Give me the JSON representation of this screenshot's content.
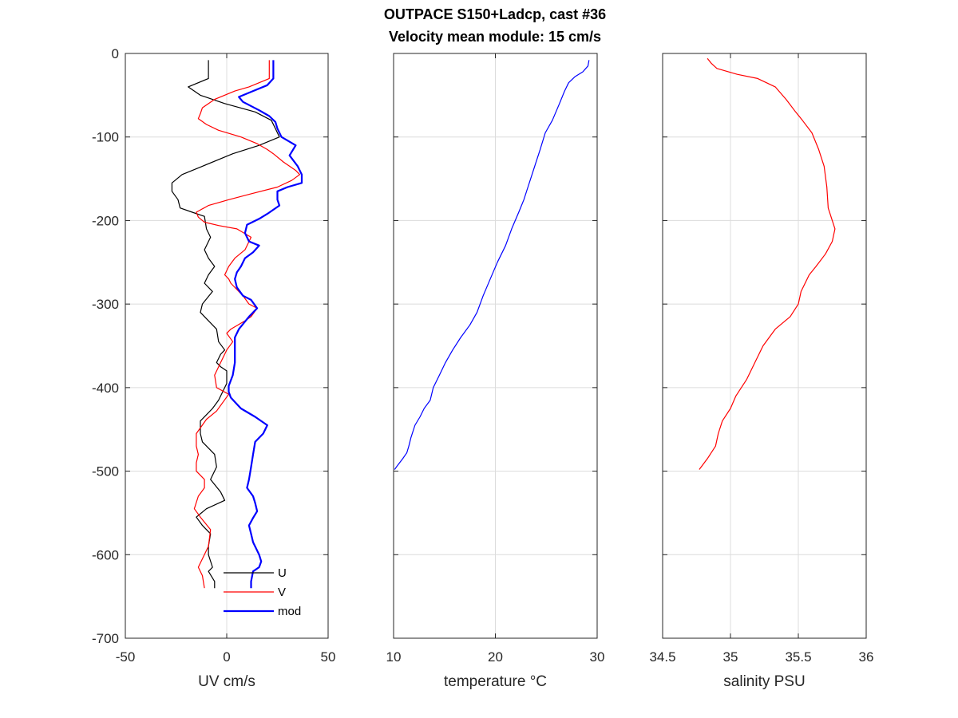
{
  "chart_data": [
    {
      "type": "line",
      "title": "OUTPACE S150+Ladcp, cast #36",
      "subtitle": "Velocity mean module:  15 cm/s",
      "xlabel": "UV cm/s",
      "ylabel": "",
      "xlim": [
        -50,
        50
      ],
      "ylim": [
        -700,
        0
      ],
      "xticks": [
        -50,
        0,
        50
      ],
      "yticks": [
        0,
        -100,
        -200,
        -300,
        -400,
        -500,
        -600,
        -700
      ],
      "grid": true,
      "legend": {
        "placement": "bottom-right",
        "entries": [
          "U",
          "V",
          "mod"
        ]
      },
      "series": [
        {
          "name": "U",
          "color": "#000000",
          "line_width": 1.2,
          "points": [
            [
              -9,
              -8
            ],
            [
              -9,
              -30
            ],
            [
              -19,
              -40
            ],
            [
              -13,
              -50
            ],
            [
              -1,
              -60
            ],
            [
              14,
              -70
            ],
            [
              22,
              -80
            ],
            [
              24,
              -90
            ],
            [
              26,
              -100
            ],
            [
              16,
              -110
            ],
            [
              3,
              -120
            ],
            [
              -12,
              -135
            ],
            [
              -22,
              -145
            ],
            [
              -27,
              -155
            ],
            [
              -27,
              -165
            ],
            [
              -24,
              -175
            ],
            [
              -23,
              -185
            ],
            [
              -17,
              -190
            ],
            [
              -11,
              -195
            ],
            [
              -10,
              -210
            ],
            [
              -8,
              -220
            ],
            [
              -11,
              -235
            ],
            [
              -9,
              -245
            ],
            [
              -6,
              -255
            ],
            [
              -9,
              -265
            ],
            [
              -11,
              -275
            ],
            [
              -7,
              -285
            ],
            [
              -12,
              -300
            ],
            [
              -13,
              -310
            ],
            [
              -9,
              -320
            ],
            [
              -5,
              -330
            ],
            [
              -4,
              -345
            ],
            [
              -1,
              -355
            ],
            [
              -3,
              -360
            ],
            [
              -5,
              -370
            ],
            [
              -3,
              -375
            ],
            [
              0,
              -380
            ],
            [
              0,
              -395
            ],
            [
              -2,
              -405
            ],
            [
              -4,
              -415
            ],
            [
              -7,
              -425
            ],
            [
              -13,
              -440
            ],
            [
              -13,
              -455
            ],
            [
              -12,
              -465
            ],
            [
              -6,
              -480
            ],
            [
              -5,
              -495
            ],
            [
              -8,
              -510
            ],
            [
              -3,
              -525
            ],
            [
              -1,
              -535
            ],
            [
              -10,
              -545
            ],
            [
              -15,
              -555
            ],
            [
              -12,
              -565
            ],
            [
              -8,
              -575
            ],
            [
              -9,
              -590
            ],
            [
              -9,
              -600
            ],
            [
              -7,
              -615
            ],
            [
              -9,
              -620
            ],
            [
              -6,
              -632
            ],
            [
              -6,
              -640
            ]
          ]
        },
        {
          "name": "V",
          "color": "#ff0000",
          "line_width": 1.2,
          "points": [
            [
              21,
              -8
            ],
            [
              21,
              -30
            ],
            [
              16,
              -35
            ],
            [
              11,
              -40
            ],
            [
              4,
              -45
            ],
            [
              -6,
              -55
            ],
            [
              -12,
              -65
            ],
            [
              -13,
              -72
            ],
            [
              -14,
              -78
            ],
            [
              -10,
              -85
            ],
            [
              -4,
              -92
            ],
            [
              7,
              -100
            ],
            [
              15,
              -108
            ],
            [
              20,
              -115
            ],
            [
              23,
              -120
            ],
            [
              28,
              -130
            ],
            [
              34,
              -140
            ],
            [
              36,
              -145
            ],
            [
              32,
              -152
            ],
            [
              25,
              -160
            ],
            [
              12,
              -168
            ],
            [
              1,
              -175
            ],
            [
              -9,
              -182
            ],
            [
              -15,
              -190
            ],
            [
              -14,
              -196
            ],
            [
              -11,
              -202
            ],
            [
              -4,
              -206
            ],
            [
              5,
              -210
            ],
            [
              12,
              -220
            ],
            [
              9,
              -235
            ],
            [
              4,
              -245
            ],
            [
              1,
              -255
            ],
            [
              -1,
              -265
            ],
            [
              1,
              -270
            ],
            [
              2,
              -275
            ],
            [
              8,
              -290
            ],
            [
              11,
              -300
            ],
            [
              15,
              -305
            ],
            [
              12,
              -315
            ],
            [
              9,
              -320
            ],
            [
              2,
              -330
            ],
            [
              0,
              -335
            ],
            [
              3,
              -345
            ],
            [
              0,
              -355
            ],
            [
              -3,
              -370
            ],
            [
              -6,
              -385
            ],
            [
              -5,
              -400
            ],
            [
              1,
              -408
            ],
            [
              -2,
              -418
            ],
            [
              -5,
              -428
            ],
            [
              -10,
              -438
            ],
            [
              -15,
              -455
            ],
            [
              -15,
              -470
            ],
            [
              -14,
              -480
            ],
            [
              -15,
              -490
            ],
            [
              -15,
              -500
            ],
            [
              -11,
              -510
            ],
            [
              -11,
              -520
            ],
            [
              -14,
              -530
            ],
            [
              -16,
              -545
            ],
            [
              -13,
              -555
            ],
            [
              -8,
              -570
            ],
            [
              -9,
              -590
            ],
            [
              -12,
              -605
            ],
            [
              -14,
              -615
            ],
            [
              -12,
              -625
            ],
            [
              -11,
              -640
            ]
          ]
        },
        {
          "name": "mod",
          "color": "#0000ff",
          "line_width": 2.2,
          "points": [
            [
              23,
              -8
            ],
            [
              23,
              -30
            ],
            [
              20,
              -38
            ],
            [
              13,
              -45
            ],
            [
              6,
              -52
            ],
            [
              8,
              -58
            ],
            [
              16,
              -68
            ],
            [
              21,
              -75
            ],
            [
              24,
              -82
            ],
            [
              25,
              -90
            ],
            [
              27,
              -100
            ],
            [
              34,
              -110
            ],
            [
              31,
              -122
            ],
            [
              35,
              -135
            ],
            [
              37,
              -145
            ],
            [
              37,
              -155
            ],
            [
              30,
              -160
            ],
            [
              25,
              -165
            ],
            [
              25,
              -175
            ],
            [
              26,
              -182
            ],
            [
              20,
              -192
            ],
            [
              16,
              -198
            ],
            [
              10,
              -205
            ],
            [
              9,
              -215
            ],
            [
              11,
              -225
            ],
            [
              16,
              -230
            ],
            [
              13,
              -238
            ],
            [
              9,
              -245
            ],
            [
              7,
              -255
            ],
            [
              5,
              -262
            ],
            [
              4,
              -270
            ],
            [
              5,
              -280
            ],
            [
              8,
              -290
            ],
            [
              12,
              -295
            ],
            [
              15,
              -305
            ],
            [
              11,
              -315
            ],
            [
              6,
              -330
            ],
            [
              4,
              -340
            ],
            [
              4,
              -355
            ],
            [
              4,
              -370
            ],
            [
              3,
              -385
            ],
            [
              1,
              -398
            ],
            [
              1,
              -405
            ],
            [
              2,
              -412
            ],
            [
              7,
              -425
            ],
            [
              14,
              -435
            ],
            [
              20,
              -445
            ],
            [
              18,
              -455
            ],
            [
              14,
              -465
            ],
            [
              13,
              -480
            ],
            [
              12,
              -495
            ],
            [
              11,
              -510
            ],
            [
              10,
              -520
            ],
            [
              13,
              -530
            ],
            [
              14,
              -538
            ],
            [
              15,
              -548
            ],
            [
              13,
              -556
            ],
            [
              11,
              -565
            ],
            [
              12,
              -575
            ],
            [
              13,
              -585
            ],
            [
              16,
              -600
            ],
            [
              17,
              -608
            ],
            [
              16,
              -615
            ],
            [
              13,
              -620
            ],
            [
              12,
              -632
            ],
            [
              12,
              -640
            ]
          ]
        }
      ]
    },
    {
      "type": "line",
      "title": "",
      "xlabel": "temperature °C",
      "ylabel": "",
      "xlim": [
        10,
        30
      ],
      "ylim": [
        -700,
        0
      ],
      "xticks": [
        10,
        20,
        30
      ],
      "yticks": [
        0,
        -100,
        -200,
        -300,
        -400,
        -500,
        -600,
        -700
      ],
      "grid": true,
      "series": [
        {
          "name": "",
          "color": "#0000ff",
          "line_width": 1.2,
          "points": [
            [
              29.2,
              -8
            ],
            [
              29.1,
              -15
            ],
            [
              28.6,
              -22
            ],
            [
              27.8,
              -28
            ],
            [
              27.2,
              -35
            ],
            [
              26.8,
              -45
            ],
            [
              26.3,
              -60
            ],
            [
              25.6,
              -80
            ],
            [
              24.9,
              -95
            ],
            [
              24.4,
              -115
            ],
            [
              24,
              -130
            ],
            [
              23.6,
              -145
            ],
            [
              23.2,
              -160
            ],
            [
              22.8,
              -175
            ],
            [
              22.3,
              -190
            ],
            [
              21.6,
              -210
            ],
            [
              21,
              -230
            ],
            [
              20.2,
              -250
            ],
            [
              19.5,
              -270
            ],
            [
              18.8,
              -290
            ],
            [
              18.2,
              -310
            ],
            [
              17.5,
              -325
            ],
            [
              16.6,
              -340
            ],
            [
              15.8,
              -355
            ],
            [
              15.1,
              -370
            ],
            [
              14.5,
              -385
            ],
            [
              13.9,
              -400
            ],
            [
              13.6,
              -415
            ],
            [
              13,
              -425
            ],
            [
              12.6,
              -435
            ],
            [
              12.1,
              -445
            ],
            [
              11.7,
              -460
            ],
            [
              11.5,
              -470
            ],
            [
              11.3,
              -478
            ],
            [
              10.9,
              -485
            ],
            [
              10.4,
              -493
            ],
            [
              10.1,
              -498
            ]
          ]
        }
      ]
    },
    {
      "type": "line",
      "title": "",
      "xlabel": "salinity PSU",
      "ylabel": "",
      "xlim": [
        34.5,
        36
      ],
      "xtick_labels": [
        "34.5",
        "35",
        "35.5",
        "36"
      ],
      "ylim": [
        -700,
        0
      ],
      "xticks": [
        34.5,
        35,
        35.5,
        36
      ],
      "yticks": [
        0,
        -100,
        -200,
        -300,
        -400,
        -500,
        -600,
        -700
      ],
      "grid": true,
      "series": [
        {
          "name": "",
          "color": "#ff0000",
          "line_width": 1.2,
          "points": [
            [
              34.83,
              -6
            ],
            [
              34.86,
              -12
            ],
            [
              34.9,
              -18
            ],
            [
              35.05,
              -25
            ],
            [
              35.2,
              -30
            ],
            [
              35.33,
              -40
            ],
            [
              35.41,
              -55
            ],
            [
              35.48,
              -70
            ],
            [
              35.53,
              -80
            ],
            [
              35.6,
              -95
            ],
            [
              35.65,
              -115
            ],
            [
              35.69,
              -135
            ],
            [
              35.71,
              -160
            ],
            [
              35.72,
              -185
            ],
            [
              35.75,
              -200
            ],
            [
              35.77,
              -210
            ],
            [
              35.75,
              -225
            ],
            [
              35.7,
              -240
            ],
            [
              35.63,
              -255
            ],
            [
              35.58,
              -265
            ],
            [
              35.52,
              -285
            ],
            [
              35.5,
              -300
            ],
            [
              35.44,
              -315
            ],
            [
              35.33,
              -330
            ],
            [
              35.24,
              -350
            ],
            [
              35.18,
              -370
            ],
            [
              35.12,
              -390
            ],
            [
              35.04,
              -410
            ],
            [
              35,
              -425
            ],
            [
              34.94,
              -440
            ],
            [
              34.91,
              -455
            ],
            [
              34.89,
              -470
            ],
            [
              34.83,
              -485
            ],
            [
              34.77,
              -498
            ]
          ]
        }
      ]
    }
  ]
}
